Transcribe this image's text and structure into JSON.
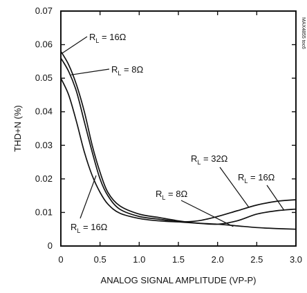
{
  "chart_data": {
    "type": "line",
    "title": "",
    "xlabel": "ANALOG SIGNAL AMPLITUDE (VP-P)",
    "ylabel": "THD+N (%)",
    "xlim": [
      0,
      3.0
    ],
    "ylim": [
      0,
      0.07
    ],
    "x_ticks": [
      "0",
      "0.5",
      "1.0",
      "1.5",
      "2.0",
      "2.5",
      "3.0"
    ],
    "y_ticks": [
      "0",
      "0.01",
      "0.02",
      "0.03",
      "0.04",
      "0.05",
      "0.06",
      "0.07"
    ],
    "grid": false,
    "legend": "none",
    "part_code": "MAX4855 toc6",
    "series": [
      {
        "name": "RL = 16Ω",
        "x": [
          0,
          0.1,
          0.2,
          0.3,
          0.4,
          0.5,
          0.6,
          0.75,
          1.0,
          1.25,
          1.5,
          1.75,
          2.0,
          2.25,
          2.5,
          2.75,
          3.0
        ],
        "values": [
          0.058,
          0.054,
          0.048,
          0.04,
          0.03,
          0.022,
          0.016,
          0.012,
          0.0095,
          0.0085,
          0.0075,
          0.0068,
          0.0065,
          0.0075,
          0.0095,
          0.0105,
          0.011
        ]
      },
      {
        "name": "RL = 8Ω",
        "x": [
          0,
          0.1,
          0.2,
          0.3,
          0.4,
          0.5,
          0.6,
          0.75,
          1.0,
          1.25,
          1.5,
          1.75,
          2.0,
          2.25,
          2.5,
          2.75,
          3.0
        ],
        "values": [
          0.056,
          0.052,
          0.046,
          0.037,
          0.028,
          0.02,
          0.015,
          0.011,
          0.0088,
          0.008,
          0.0072,
          0.0068,
          0.0065,
          0.006,
          0.0055,
          0.0052,
          0.005
        ]
      },
      {
        "name": "RL = 32Ω",
        "x": [
          0,
          0.1,
          0.2,
          0.3,
          0.4,
          0.5,
          0.6,
          0.75,
          1.0,
          1.25,
          1.5,
          1.75,
          2.0,
          2.25,
          2.5,
          2.75,
          3.0
        ],
        "values": [
          0.05,
          0.045,
          0.037,
          0.028,
          0.021,
          0.016,
          0.0125,
          0.0098,
          0.0082,
          0.0075,
          0.0072,
          0.0075,
          0.0088,
          0.0105,
          0.0122,
          0.0133,
          0.0138
        ]
      }
    ],
    "annotations": [
      {
        "prefix": "R",
        "sub": "L",
        "text": " = 16Ω",
        "series": "RL = 16Ω"
      },
      {
        "prefix": "R",
        "sub": "L",
        "text": " = 8Ω",
        "series": "RL = 8Ω"
      },
      {
        "prefix": "R",
        "sub": "L",
        "text": " = 16Ω",
        "series": "RL = 16Ω"
      },
      {
        "prefix": "R",
        "sub": "L",
        "text": " = 32Ω",
        "series": "RL = 32Ω"
      },
      {
        "prefix": "R",
        "sub": "L",
        "text": " = 16Ω",
        "series": "RL = 16Ω"
      },
      {
        "prefix": "R",
        "sub": "L",
        "text": " = 8Ω",
        "series": "RL = 8Ω"
      }
    ]
  }
}
